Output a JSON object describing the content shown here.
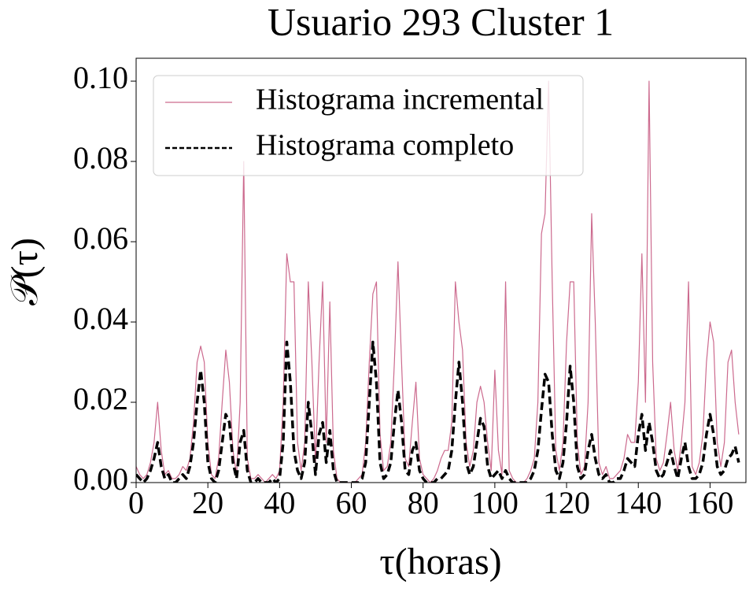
{
  "chart_data": {
    "type": "line",
    "title": "Usuario 293 Cluster 1",
    "xlabel": "τ(horas)",
    "ylabel": "𝒫(τ)",
    "legend": "upper left",
    "xlim": [
      0,
      170
    ],
    "ylim": [
      0,
      0.1057
    ],
    "xticks": [
      0,
      20,
      40,
      60,
      80,
      100,
      120,
      140,
      160
    ],
    "yticks": [
      {
        "value": 0,
        "label": "0.00"
      },
      {
        "value": 0.02,
        "label": "0.02"
      },
      {
        "value": 0.04,
        "label": "0.04"
      },
      {
        "value": 0.06,
        "label": "0.06"
      },
      {
        "value": 0.08,
        "label": "0.08"
      },
      {
        "value": 0.1,
        "label": "0.10"
      }
    ],
    "x": [
      0,
      1,
      2,
      3,
      4,
      5,
      6,
      7,
      8,
      9,
      10,
      11,
      12,
      13,
      14,
      15,
      16,
      17,
      18,
      19,
      20,
      21,
      22,
      23,
      24,
      25,
      26,
      27,
      28,
      29,
      30,
      31,
      32,
      33,
      34,
      35,
      36,
      37,
      38,
      39,
      40,
      41,
      42,
      43,
      44,
      45,
      46,
      47,
      48,
      49,
      50,
      51,
      52,
      53,
      54,
      55,
      56,
      57,
      58,
      59,
      60,
      61,
      62,
      63,
      64,
      65,
      66,
      67,
      68,
      69,
      70,
      71,
      72,
      73,
      74,
      75,
      76,
      77,
      78,
      79,
      80,
      81,
      82,
      83,
      84,
      85,
      86,
      87,
      88,
      89,
      90,
      91,
      92,
      93,
      94,
      95,
      96,
      97,
      98,
      99,
      100,
      101,
      102,
      103,
      104,
      105,
      106,
      107,
      108,
      109,
      110,
      111,
      112,
      113,
      114,
      115,
      116,
      117,
      118,
      119,
      120,
      121,
      122,
      123,
      124,
      125,
      126,
      127,
      128,
      129,
      130,
      131,
      132,
      133,
      134,
      135,
      136,
      137,
      138,
      139,
      140,
      141,
      142,
      143,
      144,
      145,
      146,
      147,
      148,
      149,
      150,
      151,
      152,
      153,
      154,
      155,
      156,
      157,
      158,
      159,
      160,
      161,
      162,
      163,
      164,
      165,
      166,
      167,
      168
    ],
    "series": [
      {
        "name": "Histograma incremental",
        "color": "#cc6a8e",
        "dash": false,
        "values": [
          0.004,
          0.002,
          0.001,
          0.002,
          0.005,
          0.01,
          0.02,
          0.008,
          0.002,
          0.003,
          0.001,
          0.001,
          0.002,
          0.004,
          0.003,
          0.006,
          0.015,
          0.03,
          0.034,
          0.03,
          0.01,
          0.002,
          0.001,
          0.006,
          0.02,
          0.033,
          0.025,
          0.008,
          0.002,
          0.02,
          0.08,
          0.006,
          0.001,
          0.001,
          0.002,
          0.001,
          0,
          0.001,
          0.002,
          0.001,
          0.003,
          0.02,
          0.057,
          0.05,
          0.05,
          0.01,
          0.003,
          0.01,
          0.05,
          0.03,
          0.005,
          0.03,
          0.05,
          0.01,
          0.045,
          0.008,
          0.001,
          0,
          0,
          0,
          0,
          0,
          0.001,
          0.002,
          0.01,
          0.03,
          0.047,
          0.05,
          0.012,
          0.003,
          0.004,
          0.01,
          0.03,
          0.055,
          0.03,
          0.006,
          0.004,
          0.015,
          0.025,
          0.006,
          0.002,
          0.001,
          0,
          0.001,
          0.003,
          0.006,
          0.008,
          0.008,
          0.015,
          0.05,
          0.04,
          0.033,
          0.01,
          0.004,
          0.008,
          0.02,
          0.024,
          0.02,
          0.01,
          0.003,
          0.028,
          0.008,
          0.002,
          0.05,
          0.003,
          0.001,
          0,
          0,
          0,
          0.001,
          0.003,
          0.006,
          0.02,
          0.062,
          0.067,
          0.1,
          0.05,
          0.008,
          0.003,
          0.01,
          0.035,
          0.05,
          0.05,
          0.01,
          0.002,
          0.004,
          0.02,
          0.067,
          0.04,
          0.005,
          0.002,
          0.004,
          0.001,
          0.001,
          0.002,
          0.003,
          0.006,
          0.012,
          0.01,
          0.01,
          0.025,
          0.057,
          0.02,
          0.1,
          0.03,
          0.006,
          0.003,
          0.005,
          0.012,
          0.02,
          0.008,
          0.003,
          0.01,
          0.02,
          0.05,
          0.004,
          0.002,
          0.005,
          0.012,
          0.03,
          0.04,
          0.035,
          0.01,
          0.004,
          0.01,
          0.03,
          0.033,
          0.02,
          0.012
        ]
      },
      {
        "name": "Histograma completo",
        "color": "#000000",
        "dash": true,
        "values": [
          0.002,
          0.001,
          0,
          0.001,
          0.003,
          0.006,
          0.01,
          0.004,
          0.001,
          0.002,
          0,
          0,
          0.001,
          0.002,
          0.001,
          0.004,
          0.01,
          0.02,
          0.028,
          0.02,
          0.005,
          0.001,
          0,
          0.003,
          0.01,
          0.017,
          0.015,
          0.005,
          0.001,
          0.01,
          0.013,
          0.003,
          0,
          0,
          0.001,
          0,
          0,
          0,
          0.001,
          0,
          0.001,
          0.01,
          0.035,
          0.025,
          0.008,
          0.003,
          0.001,
          0.005,
          0.02,
          0.012,
          0.002,
          0.012,
          0.015,
          0.005,
          0.013,
          0.003,
          0,
          0,
          0,
          0,
          0,
          0,
          0,
          0.001,
          0.005,
          0.02,
          0.035,
          0.025,
          0.005,
          0.001,
          0.002,
          0.005,
          0.015,
          0.023,
          0.015,
          0.003,
          0.002,
          0.008,
          0.01,
          0.003,
          0.001,
          0,
          0,
          0,
          0.001,
          0.001,
          0.002,
          0.003,
          0.008,
          0.02,
          0.03,
          0.02,
          0.005,
          0.002,
          0.004,
          0.01,
          0.016,
          0.014,
          0.004,
          0.001,
          0.002,
          0.003,
          0.001,
          0.003,
          0.001,
          0,
          0,
          0,
          0,
          0,
          0.001,
          0.003,
          0.008,
          0.018,
          0.027,
          0.025,
          0.012,
          0.003,
          0.001,
          0.005,
          0.015,
          0.029,
          0.02,
          0.004,
          0.001,
          0.002,
          0.008,
          0.012,
          0.006,
          0.002,
          0.001,
          0.002,
          0,
          0,
          0.001,
          0.001,
          0.003,
          0.006,
          0.005,
          0.004,
          0.012,
          0.017,
          0.008,
          0.015,
          0.01,
          0.003,
          0.001,
          0.002,
          0.005,
          0.008,
          0.004,
          0.001,
          0.006,
          0.01,
          0.004,
          0.001,
          0.001,
          0.002,
          0.005,
          0.012,
          0.017,
          0.012,
          0.004,
          0.002,
          0.003,
          0.006,
          0.007,
          0.009,
          0.005
        ]
      }
    ]
  }
}
